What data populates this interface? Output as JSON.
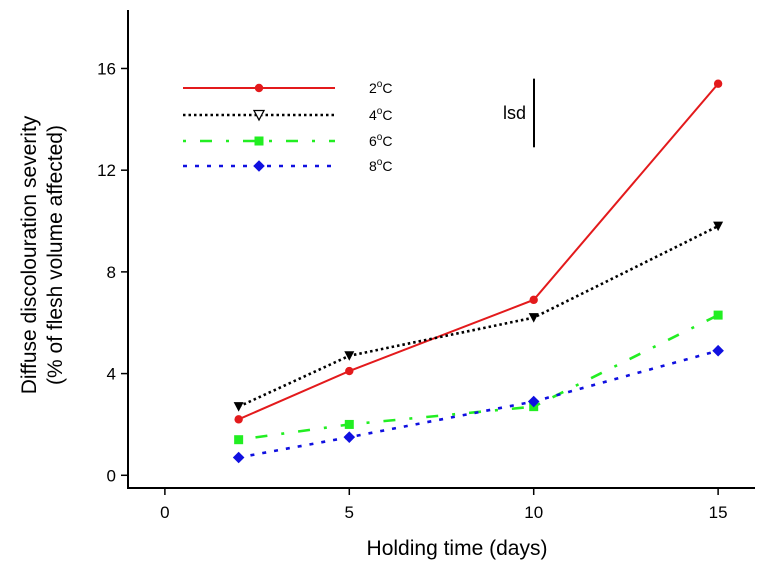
{
  "chart_data": {
    "type": "line",
    "title": "",
    "xlabel": "Holding time (days)",
    "ylabel": "Diffuse discolouration severity",
    "ylabel_sub": "(% of flesh volume affected)",
    "xlim": [
      -1,
      16
    ],
    "ylim": [
      -0.5,
      18.3
    ],
    "xticks": [
      0,
      5,
      10,
      15
    ],
    "yticks": [
      0,
      4,
      8,
      12,
      16
    ],
    "grid": false,
    "legend_position": "top-left",
    "lsd": {
      "label": "lsd",
      "ymin": 12.9,
      "ymax": 15.6
    },
    "series": [
      {
        "name": "2°C",
        "name_base": "2",
        "name_sup": "o",
        "name_unit": "C",
        "color": "#e31a1c",
        "dash": "solid",
        "marker": "circle",
        "x": [
          2,
          5,
          10,
          15
        ],
        "y": [
          2.2,
          4.1,
          6.9,
          15.4
        ]
      },
      {
        "name": "4°C",
        "name_base": "4",
        "name_sup": "o",
        "name_unit": "C",
        "color": "#000000",
        "dash": "dotted",
        "marker": "triangle-down",
        "x": [
          2,
          5,
          10,
          15
        ],
        "y": [
          2.7,
          4.7,
          6.2,
          9.8
        ]
      },
      {
        "name": "6°C",
        "name_base": "6",
        "name_sup": "o",
        "name_unit": "C",
        "color": "#22ee22",
        "dash": "dash-dot",
        "marker": "square",
        "x": [
          2,
          5,
          10,
          15
        ],
        "y": [
          1.4,
          2.0,
          2.7,
          6.3
        ]
      },
      {
        "name": "8°C",
        "name_base": "8",
        "name_sup": "o",
        "name_unit": "C",
        "color": "#1010e0",
        "dash": "dashed",
        "marker": "diamond",
        "x": [
          2,
          5,
          10,
          15
        ],
        "y": [
          0.7,
          1.5,
          2.9,
          4.9
        ]
      }
    ]
  }
}
